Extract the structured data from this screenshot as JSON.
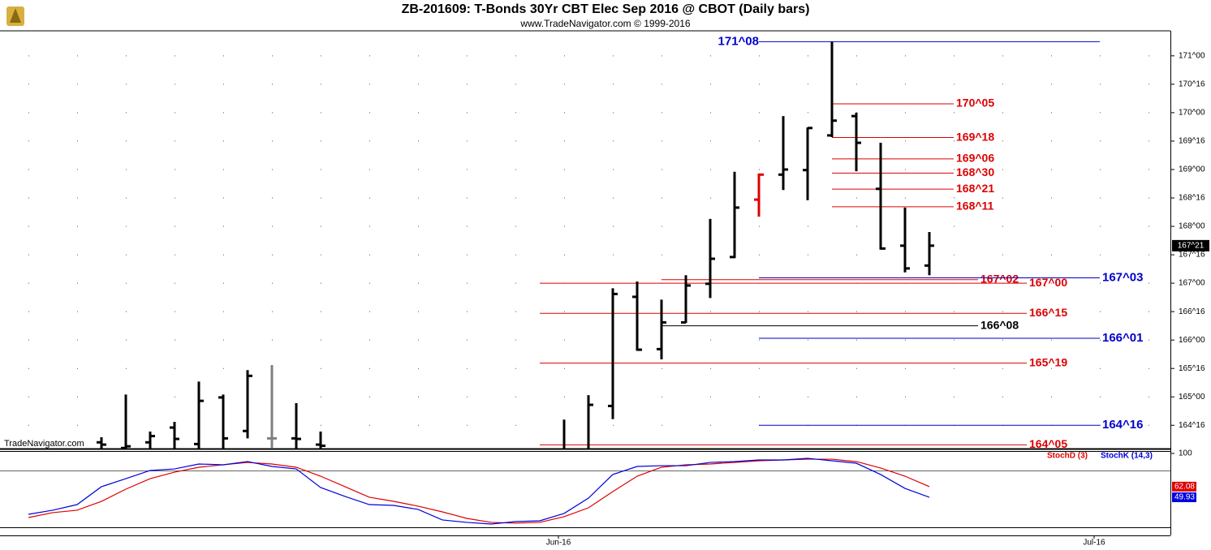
{
  "chart_data": [
    {
      "type": "ohlc",
      "title": "ZB-201609:  T-Bonds 30Yr CBT Elec Sep 2016 @ CBOT  (Daily bars)",
      "subtitle": "www.TradeNavigator.com © 1999-2016",
      "watermark": "TradeNavigator.com",
      "categories": [
        null,
        null,
        null,
        null,
        null,
        null,
        null,
        null,
        null,
        null,
        null,
        null,
        null,
        null,
        null,
        null,
        null,
        null,
        null,
        null,
        null,
        null,
        "Jun-16",
        null,
        null,
        null,
        null,
        null,
        null,
        null,
        null,
        null,
        null,
        null,
        null,
        null,
        null,
        null,
        null,
        null,
        null,
        null,
        null,
        null,
        "Jul-16"
      ],
      "open": [
        null,
        null,
        null,
        164.2,
        164.1,
        164.2,
        164.46,
        164.17,
        164.99,
        164.4,
        164.27,
        164.27,
        164.16,
        null,
        null,
        null,
        null,
        null,
        null,
        null,
        null,
        null,
        null,
        null,
        164.84,
        166.76,
        165.84,
        166.31,
        166.99,
        167.46,
        168.47,
        168.91,
        168.99,
        169.6,
        169.94,
        168.66,
        167.66,
        167.31,
        null,
        null,
        null,
        null,
        null,
        null,
        null
      ],
      "high": [
        null,
        null,
        null,
        164.29,
        165.04,
        164.39,
        164.56,
        165.27,
        165.04,
        165.47,
        165.56,
        164.89,
        164.39,
        null,
        null,
        null,
        null,
        null,
        null,
        null,
        null,
        null,
        164.6,
        165.03,
        166.91,
        167.03,
        166.71,
        167.14,
        168.13,
        168.96,
        168.93,
        169.94,
        169.74,
        171.25,
        170.0,
        169.47,
        168.33,
        167.9,
        null,
        null,
        null,
        null,
        null,
        null,
        null
      ],
      "low": [
        null,
        null,
        null,
        164.0,
        164.0,
        164.0,
        164.0,
        164.0,
        164.0,
        164.27,
        164.0,
        164.0,
        164.0,
        null,
        null,
        null,
        null,
        null,
        null,
        null,
        null,
        null,
        164.0,
        164.0,
        164.61,
        165.81,
        165.66,
        166.3,
        166.74,
        167.44,
        168.17,
        168.64,
        168.46,
        169.57,
        168.97,
        167.59,
        167.19,
        167.14,
        null,
        null,
        null,
        null,
        null,
        null,
        null
      ],
      "close": [
        null,
        null,
        null,
        164.16,
        164.13,
        164.31,
        164.26,
        164.93,
        164.27,
        165.37,
        164.27,
        164.26,
        164.14,
        null,
        null,
        null,
        null,
        null,
        null,
        null,
        null,
        null,
        null,
        164.86,
        166.81,
        165.83,
        166.31,
        166.96,
        167.43,
        168.33,
        168.91,
        169.0,
        169.73,
        169.86,
        169.47,
        167.61,
        167.26,
        167.66,
        null,
        null,
        null,
        null,
        null,
        null,
        null
      ],
      "colors": [
        null,
        null,
        null,
        "#000000",
        "#000000",
        "#000000",
        "#000000",
        "#000000",
        "#000000",
        "#000000",
        "#808080",
        "#000000",
        "#000000",
        null,
        null,
        null,
        null,
        null,
        null,
        null,
        null,
        null,
        "#000000",
        "#000000",
        "#000000",
        "#000000",
        "#000000",
        "#000000",
        "#000000",
        "#000000",
        "#e00000",
        "#000000",
        "#000000",
        "#000000",
        "#000000",
        "#000000",
        "#000000",
        "#000000",
        null,
        null,
        null,
        null,
        null,
        null,
        null
      ],
      "ylim": [
        164.09,
        171.44
      ],
      "yticks": [
        {
          "value": 171,
          "label": "171^00"
        },
        {
          "value": 170.5,
          "label": "170^16"
        },
        {
          "value": 170,
          "label": "170^00"
        },
        {
          "value": 169.5,
          "label": "169^16"
        },
        {
          "value": 169,
          "label": "169^00"
        },
        {
          "value": 168.5,
          "label": "168^16"
        },
        {
          "value": 168,
          "label": "168^00"
        },
        {
          "value": 167.5,
          "label": "167^16"
        },
        {
          "value": 167,
          "label": "167^00"
        },
        {
          "value": 166.5,
          "label": "166^16"
        },
        {
          "value": 166,
          "label": "166^00"
        },
        {
          "value": 165.5,
          "label": "165^16"
        },
        {
          "value": 165,
          "label": "165^00"
        },
        {
          "value": 164.5,
          "label": "164^16"
        }
      ],
      "grid": true,
      "last": {
        "value": 167.66,
        "label": "167^21"
      },
      "levels": [
        {
          "value": 171.25,
          "label": "171^08",
          "color": "#0000cc"
        },
        {
          "value": 170.156,
          "label": "170^05",
          "color": "#dd0000"
        },
        {
          "value": 169.5625,
          "label": "169^18",
          "color": "#dd0000"
        },
        {
          "value": 169.1875,
          "label": "169^06",
          "color": "#dd0000"
        },
        {
          "value": 168.9375,
          "label": "168^30",
          "color": "#dd0000"
        },
        {
          "value": 168.656,
          "label": "168^21",
          "color": "#dd0000"
        },
        {
          "value": 168.344,
          "label": "168^11",
          "color": "#dd0000"
        },
        {
          "value": 167.0625,
          "label": "167^02",
          "color": "#dd0000"
        },
        {
          "value": 167.094,
          "label": "167^03",
          "color": "#0000cc"
        },
        {
          "value": 167.0,
          "label": "167^00",
          "color": "#dd0000"
        },
        {
          "value": 166.469,
          "label": "166^15",
          "color": "#dd0000"
        },
        {
          "value": 166.25,
          "label": "166^08",
          "color": "#000000"
        },
        {
          "value": 166.031,
          "label": "166^01",
          "color": "#0000cc"
        },
        {
          "value": 165.594,
          "label": "165^19",
          "color": "#dd0000"
        },
        {
          "value": 164.5,
          "label": "164^16",
          "color": "#0000cc"
        },
        {
          "value": 164.156,
          "label": "164^05",
          "color": "#dd0000"
        }
      ]
    },
    {
      "type": "line",
      "series": [
        {
          "name": "StochD (3)",
          "color": "#dd0000",
          "values": [
            26.8,
            32.4,
            35.2,
            45.3,
            59.2,
            71.2,
            78.6,
            84.2,
            87.0,
            89.7,
            87.9,
            84.2,
            74.0,
            62.0,
            50.0,
            45.3,
            39.8,
            33.3,
            25.9,
            21.3,
            20.4,
            21.3,
            27.8,
            37.9,
            56.4,
            74.0,
            84.2,
            87.0,
            87.9,
            89.7,
            91.6,
            92.5,
            93.4,
            93.4,
            90.7,
            83.3,
            74.0,
            62.08,
            null,
            null,
            null,
            null,
            null,
            null,
            null
          ]
        },
        {
          "name": "StochK (14,3)",
          "color": "#0000dd",
          "values": [
            30.5,
            35.2,
            41.6,
            62.0,
            71.2,
            80.5,
            82.3,
            87.9,
            87.0,
            90.7,
            85.1,
            82.3,
            61.1,
            50.9,
            41.6,
            40.7,
            36.1,
            24.1,
            21.3,
            19.4,
            22.2,
            23.1,
            31.5,
            49.0,
            75.9,
            85.1,
            86.0,
            86.0,
            89.7,
            90.7,
            92.5,
            92.5,
            94.4,
            91.6,
            88.8,
            75.9,
            60.1,
            49.93,
            null,
            null,
            null,
            null,
            null,
            null,
            null
          ]
        }
      ],
      "ylim": [
        15.7,
        102.7
      ],
      "yticks": [
        100
      ],
      "hlines": [
        80
      ]
    }
  ]
}
